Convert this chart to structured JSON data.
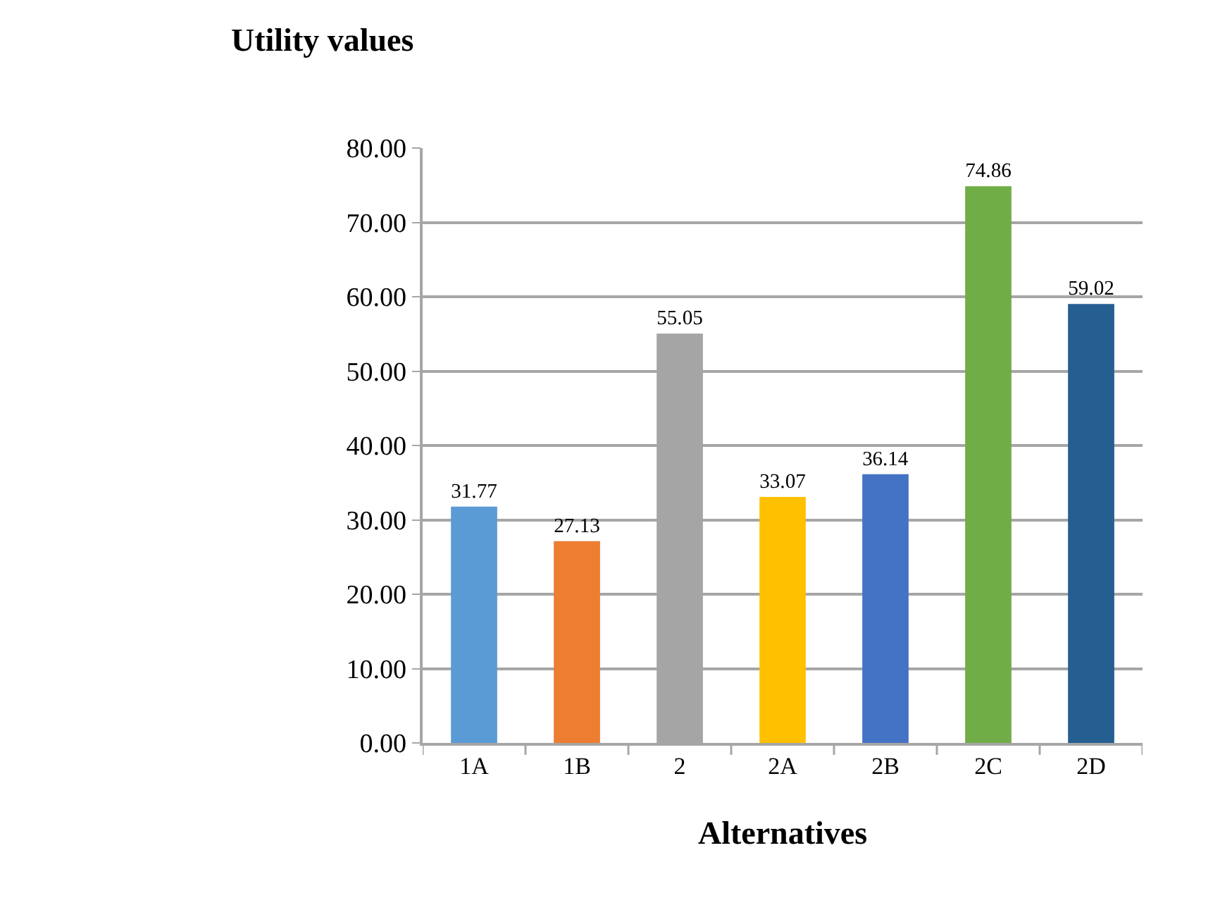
{
  "chart_data": {
    "type": "bar",
    "ylabel": "Utility values",
    "xlabel": "Alternatives",
    "categories": [
      "1A",
      "1B",
      "2",
      "2A",
      "2B",
      "2C",
      "2D"
    ],
    "values": [
      31.77,
      27.13,
      55.05,
      33.07,
      36.14,
      74.86,
      59.02
    ],
    "colors": [
      "#5b9bd5",
      "#ed7d31",
      "#a5a5a5",
      "#ffc000",
      "#4472c4",
      "#70ad47",
      "#255e91"
    ],
    "ylim": [
      0,
      80
    ],
    "yticks": [
      {
        "value": 0,
        "label": "0.00"
      },
      {
        "value": 10,
        "label": "10.00"
      },
      {
        "value": 20,
        "label": "20.00"
      },
      {
        "value": 30,
        "label": "30.00"
      },
      {
        "value": 40,
        "label": "40.00"
      },
      {
        "value": 50,
        "label": "50.00"
      },
      {
        "value": 60,
        "label": "60.00"
      },
      {
        "value": 70,
        "label": "70.00"
      },
      {
        "value": 80,
        "label": "80.00"
      }
    ],
    "grid": "y",
    "data_labels": true,
    "legend": false
  }
}
